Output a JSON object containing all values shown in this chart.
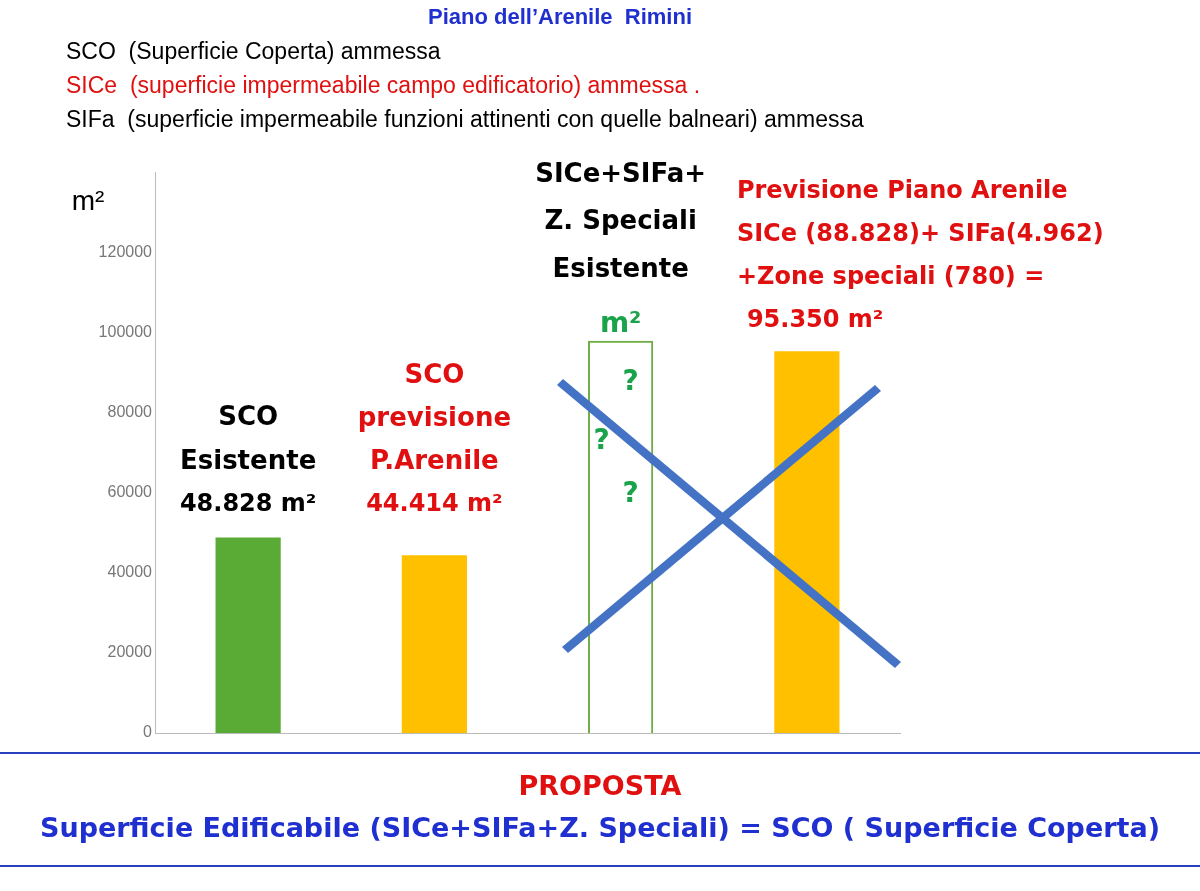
{
  "chart_data": {
    "type": "bar",
    "title": "Piano dell’Arenile  Rimini",
    "ylabel": "m²",
    "categories": [
      null,
      null,
      null,
      null
    ],
    "values": [
      48828,
      44414,
      98000,
      95350
    ],
    "colors": [
      "#5aab36",
      "#ffc000",
      "#70ad47",
      "#ffc000"
    ],
    "ylim": [
      0,
      140000
    ],
    "yticks": [
      0,
      20000,
      40000,
      60000,
      80000,
      100000,
      120000
    ],
    "grid": false,
    "legend": false,
    "annotations": [
      "SCO  (Superficie Coperta) ammessa",
      "SICe  (superficie impermeabile campo edificatorio) ammessa .",
      "SIFa  (superficie impermeabile funzioni attinenti con quelle balneari) ammessa",
      "SCO",
      "Esistente",
      "SCO",
      "previsione",
      "P.Arenile",
      "SICe+SIFa+",
      "Z. Speciali",
      "Esistente",
      "m²",
      "?",
      "?",
      "?",
      "Previsione Piano Arenile",
      "SICe (88.828)+ SIFa(4.962)",
      "+Zone speciali (780) =",
      "PROPOSTA",
      "Superficie Edificabile (SICe+SIFa+Z. Speciali) = SCO ( Superficie Coperta)",
      "48.828 m²",
      "44.414 m²",
      "95.350 m²"
    ]
  }
}
